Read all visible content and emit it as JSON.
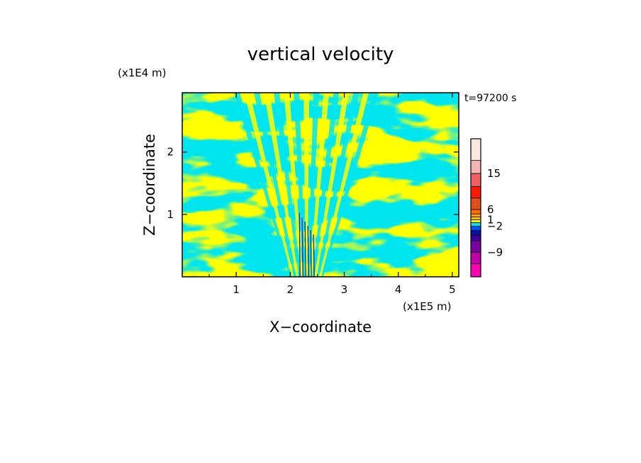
{
  "chart_data": {
    "type": "heatmap",
    "title": "vertical velocity",
    "xlabel": "X−coordinate",
    "ylabel": "Z−coordinate",
    "x_unit": "(x1E5 m)",
    "y_unit": "(x1E4 m)",
    "time_label": "t=97200 s",
    "x_ticks": [
      "1",
      "2",
      "3",
      "4",
      "5"
    ],
    "x_tick_values": [
      1,
      2,
      3,
      4,
      5
    ],
    "y_ticks": [
      "1",
      "2"
    ],
    "y_tick_values": [
      1,
      2
    ],
    "xlim": [
      0,
      5.12
    ],
    "ylim": [
      0,
      2.95
    ],
    "field_colors": {
      "positive": "#ffff00",
      "negative": "#00e5ee",
      "strong_negative": "#1a1aa0"
    },
    "colorbar": {
      "labels": [
        "15",
        "6",
        "1",
        "−2",
        "−9"
      ],
      "label_values": [
        15,
        6,
        1,
        -2,
        -9
      ],
      "levels_bottom_to_top": [
        {
          "color": "#ff00b4"
        },
        {
          "color": "#c000a8"
        },
        {
          "color": "#7a00a0"
        },
        {
          "color": "#4000a0"
        },
        {
          "color": "#1010a0"
        },
        {
          "color": "#0050ff"
        },
        {
          "color": "#00e5ee"
        },
        {
          "color": "#ffff00"
        },
        {
          "color": "#ffc000"
        },
        {
          "color": "#ffaa00"
        },
        {
          "color": "#ff7000"
        },
        {
          "color": "#e0501a"
        },
        {
          "color": "#ff1a00"
        },
        {
          "color": "#f06060"
        },
        {
          "color": "#f5b5b5"
        },
        {
          "color": "#fde8e0"
        }
      ]
    }
  }
}
